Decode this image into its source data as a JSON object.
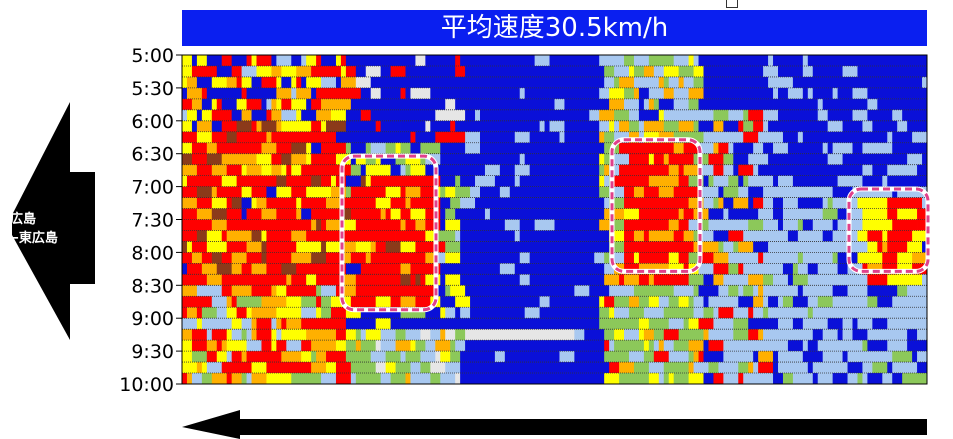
{
  "title": "平均速度30.5km/h",
  "direction": {
    "line1": "広島",
    "line2": "←東広島"
  },
  "colors": {
    "title_bg": "#0a1ff0",
    "speed_blue": "#0a10d8",
    "speed_lightblue": "#a8c8f0",
    "speed_gray": "#e6e6e6",
    "speed_green": "#8cc85a",
    "speed_yellow": "#ffff00",
    "speed_orange": "#ffb000",
    "speed_red": "#ff0000",
    "speed_brown": "#8b3a1a",
    "highlight": "#e0408a"
  },
  "chart_data": {
    "type": "heatmap",
    "title": "平均速度30.5km/h",
    "y_ticks": [
      "5:00",
      "5:30",
      "6:00",
      "6:30",
      "7:00",
      "7:30",
      "8:00",
      "8:30",
      "9:00",
      "9:30",
      "10:00"
    ],
    "grid": true,
    "highlights": [
      {
        "from": "6:45",
        "to": "8:45"
      },
      {
        "from": "6:30",
        "to": "8:10"
      },
      {
        "from": "7:15",
        "to": "8:10"
      }
    ]
  }
}
